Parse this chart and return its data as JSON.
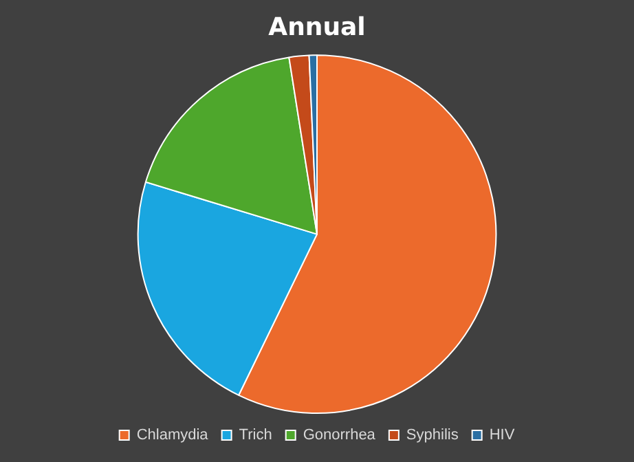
{
  "chart_data": {
    "type": "pie",
    "title": "Annual",
    "categories": [
      "Chlamydia",
      "Trich",
      "Gonorrhea",
      "Syphilis",
      "HIV"
    ],
    "values": [
      57.2,
      22.5,
      17.8,
      1.8,
      0.7
    ],
    "colors": [
      "#ec6a2c",
      "#1aa6e0",
      "#4ea72c",
      "#c44a1a",
      "#2a6fa3"
    ],
    "legend": "bottom"
  }
}
